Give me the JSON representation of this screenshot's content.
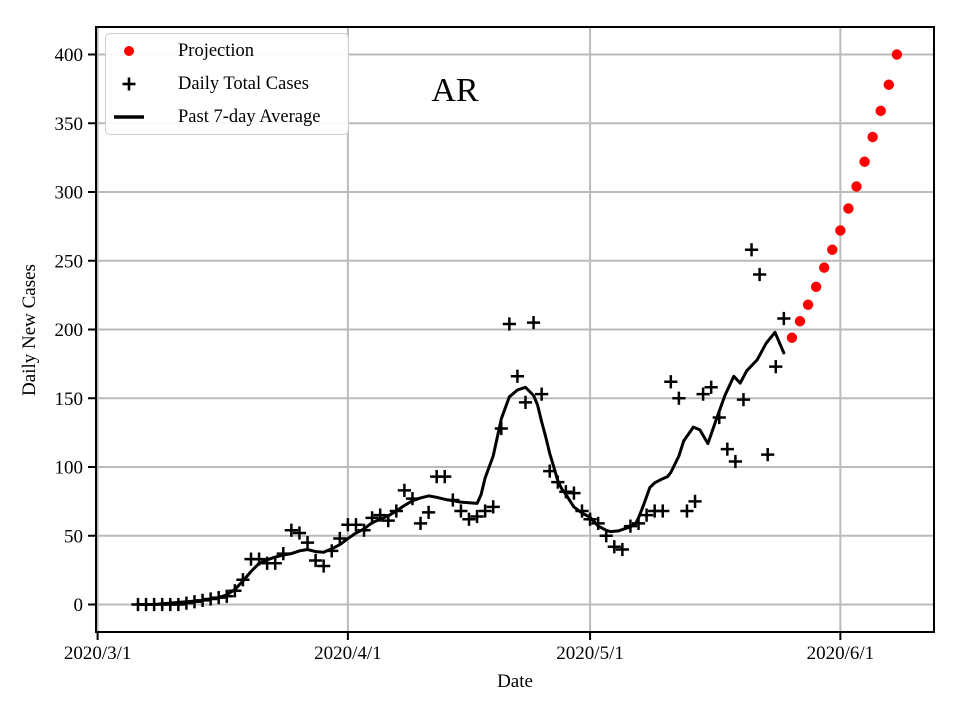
{
  "chart_data": {
    "type": "mixed",
    "title": "AR",
    "xlabel": "Date",
    "ylabel": "Daily New Cases",
    "x_axis": {
      "day_zero_date": "2020/3/1",
      "tick_labels": [
        "2020/3/1",
        "2020/4/1",
        "2020/5/1",
        "2020/6/1"
      ],
      "tick_days": [
        0,
        31,
        61,
        92
      ],
      "xlim_days": [
        -0.2,
        103.6
      ]
    },
    "y_axis": {
      "ticks": [
        0,
        50,
        100,
        150,
        200,
        250,
        300,
        350,
        400
      ],
      "ylim": [
        -20,
        420
      ]
    },
    "grid": true,
    "colors": {
      "projection": "#ff0000",
      "cases": "#000000",
      "average": "#000000",
      "grid": "#bbbbbb",
      "frame": "#000000"
    },
    "legend": {
      "position": "upper-left",
      "entries": [
        {
          "label": "Projection",
          "marker": "dot",
          "color": "#ff0000"
        },
        {
          "label": "Daily Total Cases",
          "marker": "plus",
          "color": "#000000"
        },
        {
          "label": "Past 7-day Average",
          "marker": "line",
          "color": "#000000"
        }
      ]
    },
    "series": [
      {
        "name": "Projection",
        "type": "scatter",
        "marker": "dot",
        "color": "#ff0000",
        "start_day": 86,
        "start_date": "2020/5/26",
        "values": [
          194,
          206,
          218,
          231,
          245,
          258,
          272,
          288,
          304,
          322,
          340,
          359,
          378,
          400
        ]
      },
      {
        "name": "Daily Total Cases",
        "type": "scatter",
        "marker": "plus",
        "color": "#000000",
        "start_day": 5,
        "start_date": "2020/3/6",
        "values": [
          0,
          0,
          0,
          0,
          0,
          0,
          1,
          2,
          3,
          4,
          5,
          6,
          10,
          18,
          33,
          33,
          30,
          30,
          37,
          54,
          52,
          45,
          32,
          28,
          39,
          48,
          58,
          58,
          54,
          63,
          65,
          61,
          68,
          83,
          77,
          59,
          67,
          93,
          93,
          76,
          68,
          62,
          64,
          68,
          71,
          128,
          204,
          166,
          147,
          205,
          153,
          97,
          89,
          82,
          81,
          68,
          62,
          59,
          50,
          42,
          40,
          57,
          59,
          65,
          68,
          68,
          162,
          150,
          68,
          75,
          153,
          158,
          136,
          113,
          104,
          149,
          258,
          240,
          109,
          173,
          208
        ]
      },
      {
        "name": "Past 7-day Average",
        "type": "line",
        "color": "#000000",
        "points": [
          [
            5,
            0
          ],
          [
            6,
            0
          ],
          [
            7,
            0
          ],
          [
            8,
            0.5
          ],
          [
            9,
            1
          ],
          [
            10,
            1.5
          ],
          [
            11,
            2
          ],
          [
            12,
            2.5
          ],
          [
            13,
            3
          ],
          [
            14,
            4
          ],
          [
            15,
            5
          ],
          [
            16,
            7
          ],
          [
            17,
            11
          ],
          [
            18,
            17
          ],
          [
            19,
            24
          ],
          [
            20,
            30
          ],
          [
            21,
            32.5
          ],
          [
            22,
            34.5
          ],
          [
            23,
            36
          ],
          [
            24,
            37
          ],
          [
            25,
            39
          ],
          [
            26,
            40
          ],
          [
            27,
            38.5
          ],
          [
            28,
            38
          ],
          [
            29,
            40.5
          ],
          [
            30,
            43.5
          ],
          [
            31,
            48
          ],
          [
            32,
            52
          ],
          [
            33,
            55
          ],
          [
            34,
            59.5
          ],
          [
            35,
            62
          ],
          [
            36,
            64.5
          ],
          [
            37,
            68
          ],
          [
            38,
            72
          ],
          [
            39,
            75.5
          ],
          [
            40,
            77.5
          ],
          [
            41,
            79
          ],
          [
            42,
            78
          ],
          [
            43,
            76.5
          ],
          [
            44,
            75.5
          ],
          [
            45,
            74.5
          ],
          [
            46,
            74
          ],
          [
            47,
            73.5
          ],
          [
            47.5,
            80
          ],
          [
            48,
            92
          ],
          [
            49,
            108
          ],
          [
            50,
            135
          ],
          [
            51,
            151
          ],
          [
            52,
            156
          ],
          [
            53,
            158
          ],
          [
            54,
            152
          ],
          [
            54.5,
            145
          ],
          [
            55,
            133
          ],
          [
            55.5,
            122
          ],
          [
            56,
            110
          ],
          [
            56.5,
            100
          ],
          [
            57,
            90
          ],
          [
            57.5,
            84
          ],
          [
            58,
            80
          ],
          [
            59,
            71
          ],
          [
            60,
            66.5
          ],
          [
            61,
            63.5
          ],
          [
            62,
            57
          ],
          [
            63,
            54
          ],
          [
            63.5,
            53
          ],
          [
            64.5,
            53.5
          ],
          [
            66,
            56.5
          ],
          [
            66.6,
            58.5
          ],
          [
            67,
            63
          ],
          [
            67.6,
            72
          ],
          [
            68.4,
            85
          ],
          [
            69,
            88.5
          ],
          [
            70,
            91.5
          ],
          [
            70.6,
            93
          ],
          [
            71,
            96
          ],
          [
            72,
            108
          ],
          [
            72.6,
            119
          ],
          [
            73.8,
            129
          ],
          [
            74.6,
            127
          ],
          [
            75.6,
            117
          ],
          [
            76.6,
            134
          ],
          [
            77.7,
            152
          ],
          [
            78.8,
            166
          ],
          [
            79.6,
            161
          ],
          [
            80.4,
            170
          ],
          [
            81.7,
            178
          ],
          [
            82.8,
            190
          ],
          [
            83.9,
            198
          ],
          [
            85,
            183
          ]
        ]
      }
    ]
  }
}
